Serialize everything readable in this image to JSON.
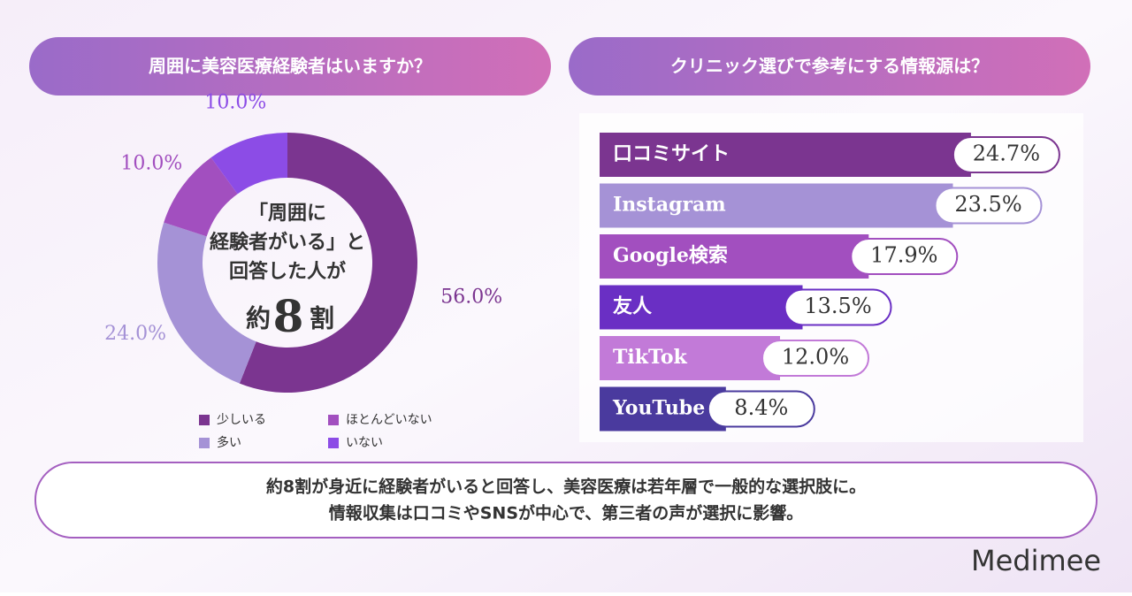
{
  "chart_data": [
    {
      "type": "donut",
      "title": "周囲に美容医療経験者はいますか？",
      "categories": [
        "少しいる",
        "多い",
        "ほとんどいない",
        "いない"
      ],
      "values": [
        56.0,
        24.0,
        10.0,
        10.0
      ],
      "value_labels": [
        "56.0%",
        "24.0%",
        "10.0%",
        "10.0%"
      ],
      "colors": [
        "#7b3590",
        "#a592d6",
        "#a24fbf",
        "#8c4ce6"
      ],
      "center_text": [
        "「周囲に",
        "経験者がいる」と",
        "回答した人が"
      ],
      "center_highlight": [
        "約",
        "8",
        "割"
      ]
    },
    {
      "type": "barh",
      "title": "クリニック選びで参考にする情報源は？",
      "categories": [
        "口コミサイト",
        "Instagram",
        "Google検索",
        "友人",
        "TikTok",
        "YouTube"
      ],
      "values": [
        24.7,
        23.5,
        17.9,
        13.5,
        12.0,
        8.4
      ],
      "value_labels": [
        "24.7%",
        "23.5%",
        "17.9%",
        "13.5%",
        "12.0%",
        "8.4%"
      ],
      "colors": [
        "#7b3590",
        "#a592d6",
        "#a24fbf",
        "#6a2fc4",
        "#c27ad8",
        "#4a3a9e"
      ]
    }
  ],
  "summary": [
    "約8割が身近に経験者がいると回答し、美容医療は若年層で一般的な選択肢に。",
    "情報収集は口コミやSNSが中心で、第三者の声が選択に影響。"
  ],
  "logo": "Medimee"
}
